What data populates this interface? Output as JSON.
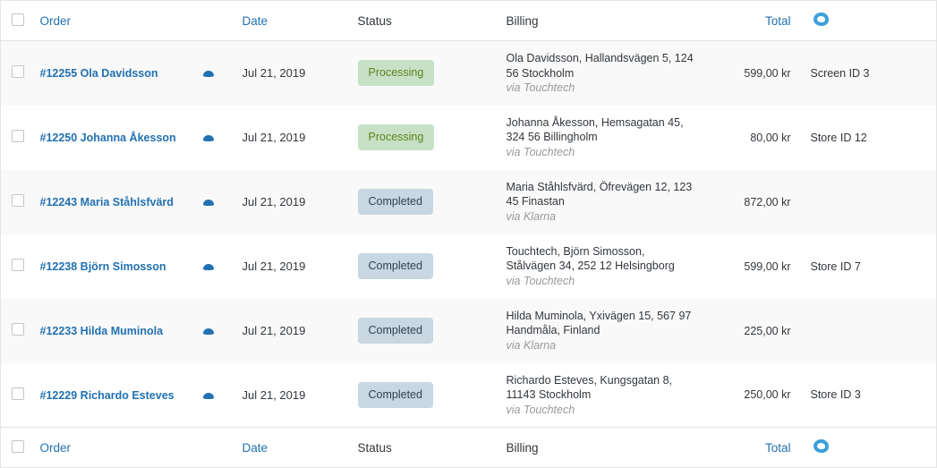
{
  "columns": {
    "order": "Order",
    "date": "Date",
    "status": "Status",
    "billing": "Billing",
    "total": "Total"
  },
  "colors": {
    "link": "#2271b1",
    "processing_bg": "#c6e1c6",
    "completed_bg": "#c8d7e1",
    "logo": "#3aa0da"
  },
  "orders": [
    {
      "order": "#12255 Ola Davidsson",
      "date": "Jul 21, 2019",
      "status": "Processing",
      "billing": "Ola Davidsson, Hallandsvägen 5, 124 56 Stockholm",
      "via": "via Touchtech",
      "total": "599,00 kr",
      "store": "Screen ID 3"
    },
    {
      "order": "#12250 Johanna Åkesson",
      "date": "Jul 21, 2019",
      "status": "Processing",
      "billing": "Johanna Åkesson, Hemsagatan 45, 324 56 Billingholm",
      "via": "via Touchtech",
      "total": "80,00 kr",
      "store": "Store ID 12"
    },
    {
      "order": "#12243 Maria Ståhlsfvärd",
      "date": "Jul 21, 2019",
      "status": "Completed",
      "billing": "Maria Ståhlsfvärd, Öfrevägen 12, 123 45 Finastan",
      "via": "via Klarna",
      "total": "872,00 kr",
      "store": ""
    },
    {
      "order": "#12238 Björn Simosson",
      "date": "Jul 21, 2019",
      "status": "Completed",
      "billing": "Touchtech, Björn Simosson, Stålvägen 34, 252 12 Helsingborg",
      "via": "via Touchtech",
      "total": "599,00 kr",
      "store": "Store ID 7"
    },
    {
      "order": "#12233 Hilda Muminola",
      "date": "Jul 21, 2019",
      "status": "Completed",
      "billing": "Hilda Muminola, Yxivägen 15, 567 97 Handmåla, Finland",
      "via": "via Klarna",
      "total": "225,00 kr",
      "store": ""
    },
    {
      "order": "#12229 Richardo Esteves",
      "date": "Jul 21, 2019",
      "status": "Completed",
      "billing": "Richardo Esteves, Kungsgatan 8, 11143 Stockholm",
      "via": "via Touchtech",
      "total": "250,00 kr",
      "store": "Store ID 3"
    }
  ]
}
